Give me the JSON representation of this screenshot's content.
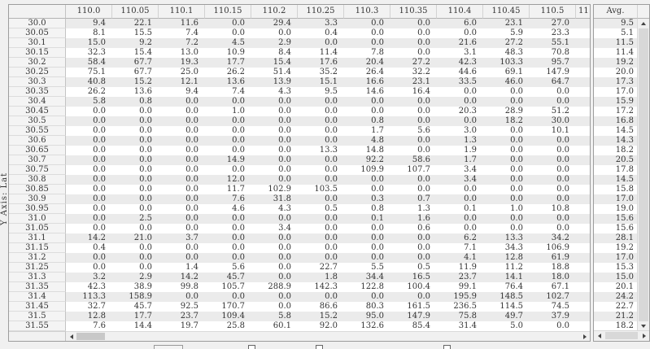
{
  "y_axis_label": "Y Axis: Lat",
  "grid": {
    "column_headers": [
      "110.0",
      "110.05",
      "110.1",
      "110.15",
      "110.2",
      "110.25",
      "110.3",
      "110.35",
      "110.4",
      "110.45",
      "110.5"
    ],
    "partial_column_header": "11",
    "rows": [
      {
        "lat": "30.0",
        "values": [
          "9.4",
          "22.1",
          "11.6",
          "0.0",
          "29.4",
          "3.3",
          "0.0",
          "0.0",
          "6.0",
          "23.1",
          "27.0"
        ],
        "avg": "9.5"
      },
      {
        "lat": "30.05",
        "values": [
          "8.1",
          "15.5",
          "7.4",
          "0.0",
          "0.0",
          "0.4",
          "0.0",
          "0.0",
          "0.0",
          "5.9",
          "23.3"
        ],
        "avg": "5.1"
      },
      {
        "lat": "30.1",
        "values": [
          "15.0",
          "9.2",
          "7.2",
          "4.5",
          "2.9",
          "0.0",
          "0.0",
          "0.0",
          "21.6",
          "27.2",
          "55.1"
        ],
        "avg": "11.5"
      },
      {
        "lat": "30.15",
        "values": [
          "32.3",
          "15.4",
          "13.0",
          "10.9",
          "8.4",
          "11.4",
          "7.8",
          "0.0",
          "3.1",
          "48.3",
          "70.8"
        ],
        "avg": "11.4"
      },
      {
        "lat": "30.2",
        "values": [
          "58.4",
          "67.7",
          "19.3",
          "17.7",
          "15.4",
          "17.6",
          "20.4",
          "27.2",
          "42.3",
          "103.3",
          "95.7"
        ],
        "avg": "19.2"
      },
      {
        "lat": "30.25",
        "values": [
          "75.1",
          "67.7",
          "25.0",
          "26.2",
          "51.4",
          "35.2",
          "26.4",
          "32.2",
          "44.6",
          "69.1",
          "147.9"
        ],
        "avg": "20.0"
      },
      {
        "lat": "30.3",
        "values": [
          "40.8",
          "15.2",
          "12.1",
          "13.6",
          "13.9",
          "15.1",
          "16.6",
          "23.1",
          "33.5",
          "46.0",
          "64.7"
        ],
        "avg": "17.3"
      },
      {
        "lat": "30.35",
        "values": [
          "26.2",
          "13.6",
          "9.4",
          "7.4",
          "4.3",
          "9.5",
          "14.6",
          "16.4",
          "0.0",
          "0.0",
          "0.0"
        ],
        "avg": "17.0"
      },
      {
        "lat": "30.4",
        "values": [
          "5.8",
          "0.8",
          "0.0",
          "0.0",
          "0.0",
          "0.0",
          "0.0",
          "0.0",
          "0.0",
          "0.0",
          "0.0"
        ],
        "avg": "15.9"
      },
      {
        "lat": "30.45",
        "values": [
          "0.0",
          "0.0",
          "0.0",
          "1.0",
          "0.0",
          "0.0",
          "0.0",
          "0.0",
          "20.3",
          "28.9",
          "51.2"
        ],
        "avg": "17.2"
      },
      {
        "lat": "30.5",
        "values": [
          "0.0",
          "0.0",
          "0.0",
          "0.0",
          "0.0",
          "0.0",
          "0.8",
          "0.0",
          "0.0",
          "18.2",
          "30.0"
        ],
        "avg": "16.8"
      },
      {
        "lat": "30.55",
        "values": [
          "0.0",
          "0.0",
          "0.0",
          "0.0",
          "0.0",
          "0.0",
          "1.7",
          "5.6",
          "3.0",
          "0.0",
          "10.1"
        ],
        "avg": "14.5"
      },
      {
        "lat": "30.6",
        "values": [
          "0.0",
          "0.0",
          "0.0",
          "0.0",
          "0.0",
          "0.0",
          "4.8",
          "0.0",
          "1.3",
          "0.0",
          "0.0"
        ],
        "avg": "14.3"
      },
      {
        "lat": "30.65",
        "values": [
          "0.0",
          "0.0",
          "0.0",
          "0.0",
          "0.0",
          "13.3",
          "14.8",
          "0.0",
          "1.9",
          "0.0",
          "0.0"
        ],
        "avg": "18.2"
      },
      {
        "lat": "30.7",
        "values": [
          "0.0",
          "0.0",
          "0.0",
          "14.9",
          "0.0",
          "0.0",
          "92.2",
          "58.6",
          "1.7",
          "0.0",
          "0.0"
        ],
        "avg": "20.5"
      },
      {
        "lat": "30.75",
        "values": [
          "0.0",
          "0.0",
          "0.0",
          "0.0",
          "0.0",
          "0.0",
          "109.9",
          "107.7",
          "3.4",
          "0.0",
          "0.0"
        ],
        "avg": "17.8"
      },
      {
        "lat": "30.8",
        "values": [
          "0.0",
          "0.0",
          "0.0",
          "12.0",
          "0.0",
          "0.0",
          "0.0",
          "0.0",
          "3.4",
          "0.0",
          "0.0"
        ],
        "avg": "14.5"
      },
      {
        "lat": "30.85",
        "values": [
          "0.0",
          "0.0",
          "0.0",
          "11.7",
          "102.9",
          "103.5",
          "0.0",
          "0.0",
          "0.0",
          "0.0",
          "0.0"
        ],
        "avg": "15.8"
      },
      {
        "lat": "30.9",
        "values": [
          "0.0",
          "0.0",
          "0.0",
          "7.6",
          "31.8",
          "0.0",
          "0.3",
          "0.7",
          "0.0",
          "0.0",
          "0.0"
        ],
        "avg": "17.0"
      },
      {
        "lat": "30.95",
        "values": [
          "0.0",
          "0.0",
          "0.0",
          "4.6",
          "4.3",
          "0.5",
          "0.8",
          "1.3",
          "0.1",
          "1.0",
          "10.8"
        ],
        "avg": "19.0"
      },
      {
        "lat": "31.0",
        "values": [
          "0.0",
          "2.5",
          "0.0",
          "0.0",
          "0.0",
          "0.0",
          "0.1",
          "1.6",
          "0.0",
          "0.0",
          "0.0"
        ],
        "avg": "15.6"
      },
      {
        "lat": "31.05",
        "values": [
          "0.0",
          "0.0",
          "0.0",
          "0.0",
          "3.4",
          "0.0",
          "0.0",
          "0.6",
          "0.0",
          "0.0",
          "0.0"
        ],
        "avg": "15.6"
      },
      {
        "lat": "31.1",
        "values": [
          "14.2",
          "21.0",
          "3.7",
          "0.0",
          "0.0",
          "0.0",
          "0.0",
          "0.0",
          "6.2",
          "13.3",
          "34.2"
        ],
        "avg": "28.1"
      },
      {
        "lat": "31.15",
        "values": [
          "0.4",
          "0.0",
          "0.0",
          "0.0",
          "0.0",
          "0.0",
          "0.0",
          "0.0",
          "7.1",
          "34.3",
          "106.9"
        ],
        "avg": "19.2"
      },
      {
        "lat": "31.2",
        "values": [
          "0.0",
          "0.0",
          "0.0",
          "0.0",
          "0.0",
          "0.0",
          "0.0",
          "0.0",
          "4.1",
          "12.8",
          "61.9"
        ],
        "avg": "17.0"
      },
      {
        "lat": "31.25",
        "values": [
          "0.0",
          "0.0",
          "1.4",
          "5.6",
          "0.0",
          "22.7",
          "5.5",
          "0.5",
          "11.9",
          "11.2",
          "18.8"
        ],
        "avg": "15.3"
      },
      {
        "lat": "31.3",
        "values": [
          "3.2",
          "2.9",
          "14.2",
          "45.7",
          "0.0",
          "1.8",
          "34.4",
          "16.5",
          "23.7",
          "14.1",
          "18.0"
        ],
        "avg": "15.0"
      },
      {
        "lat": "31.35",
        "values": [
          "42.3",
          "38.9",
          "99.8",
          "105.7",
          "288.9",
          "142.3",
          "122.8",
          "100.4",
          "99.1",
          "76.4",
          "67.1"
        ],
        "avg": "20.1"
      },
      {
        "lat": "31.4",
        "values": [
          "113.3",
          "158.9",
          "0.0",
          "0.0",
          "0.0",
          "0.0",
          "0.0",
          "0.0",
          "195.9",
          "148.5",
          "102.7"
        ],
        "avg": "24.2"
      },
      {
        "lat": "31.45",
        "values": [
          "32.7",
          "45.7",
          "92.5",
          "170.7",
          "0.0",
          "86.6",
          "80.3",
          "161.5",
          "236.5",
          "114.5",
          "74.5"
        ],
        "avg": "22.7"
      },
      {
        "lat": "31.5",
        "values": [
          "12.8",
          "17.7",
          "23.7",
          "109.4",
          "5.8",
          "15.2",
          "95.0",
          "147.9",
          "75.8",
          "49.7",
          "37.9"
        ],
        "avg": "21.2"
      },
      {
        "lat": "31.55",
        "values": [
          "7.6",
          "14.4",
          "19.7",
          "25.8",
          "60.1",
          "92.0",
          "132.6",
          "85.4",
          "31.4",
          "5.0",
          "0.0"
        ],
        "avg": "18.2"
      }
    ]
  },
  "avg_panel": {
    "header": "Avg."
  },
  "icons": {
    "scroll_left": "left-triangle",
    "scroll_right": "right-triangle",
    "scroll_up": "up-triangle",
    "scroll_down": "down-triangle"
  },
  "colors": {
    "window_bg": "#f0f0f0",
    "row_stripe": "#ebebeb",
    "header_bg": "#f2f2f2",
    "grid_border": "#9d9d9d",
    "text": "#333333",
    "scroll_thumb": "#c8c8c8"
  }
}
